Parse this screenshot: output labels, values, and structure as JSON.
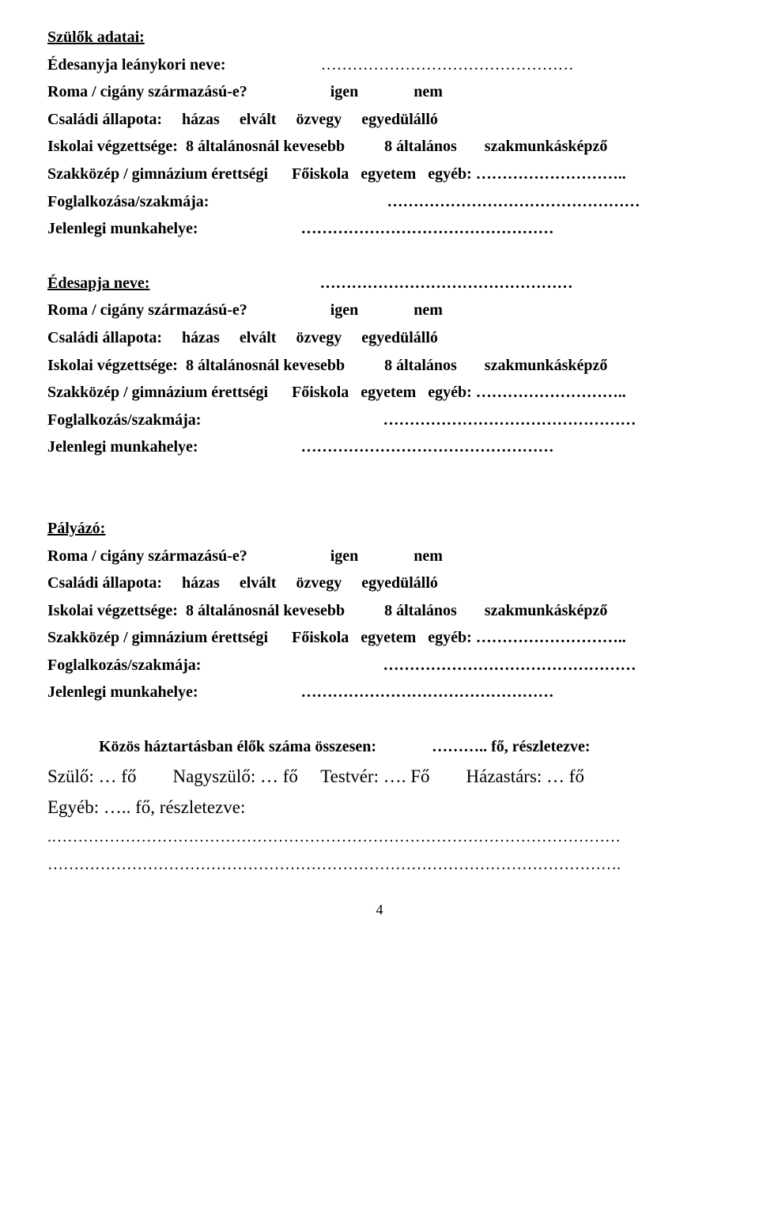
{
  "parents_heading": "Szülők adatai:",
  "mother_name_label": "Édesanyja leánykori neve:",
  "roma_question": "Roma / cigány származású-e?",
  "yes": "igen",
  "no": "nem",
  "marital_label": "Családi állapota:",
  "marital_options": "házas     elvált     özvegy     egyedülálló",
  "edu_label": "Iskolai végzettsége:",
  "edu_opts_a": "8 általánosnál kevesebb",
  "edu_opts_b": "8 általános",
  "edu_opts_c": "szakmunkásképző",
  "edu_line2": "Szakközép / gimnázium érettségi      Főiskola   egyetem   egyéb: ………………………..",
  "occupation_a_label": "Foglalkozása/szakmája:",
  "occupation_label": "Foglalkozás/szakmája:",
  "occupation_dots": "…………………………………………",
  "workplace_label": "Jelenlegi munkahelye:",
  "workplace_dots": "…………………………………………",
  "name_dots": "…………………………………………",
  "father_name_label": "Édesapja neve:",
  "applicant_heading": "Pályázó:",
  "household_label": "Közös háztartásban élők száma összesen:",
  "household_suffix": "……….. fő, részletezve:",
  "parent_count": "Szülő: … fő",
  "grandparent_count": "Nagyszülő: … fő",
  "sibling_count": "Testvér: …. Fő",
  "spouse_count": "Házastárs: … fő",
  "other_count": "Egyéb: ….. fő, részletezve:",
  "long_dots": ".………………………………………………………………………………………………",
  "long_dots2": "……………………………………………………………………………………………….",
  "page_number": "4"
}
